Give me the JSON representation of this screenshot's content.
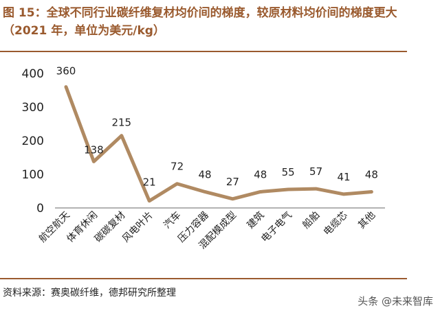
{
  "header": {
    "title": "图 15：全球不同行业碳纤维复材均价间的梯度，较原材料均价间的梯度更大（2021 年，单位为美元/kg）"
  },
  "footer": {
    "source": "资料来源：赛奥碳纤维，德邦研究所整理",
    "watermark": "头条 @未来智库"
  },
  "colors": {
    "accent": "#9a5a2e",
    "line": "#b08a62"
  },
  "chart_data": {
    "type": "line",
    "categories": [
      "航空航天",
      "体育休闲",
      "碳碳复材",
      "风电叶片",
      "汽车",
      "压力容器",
      "混配模成型",
      "建筑",
      "电子电气",
      "船舶",
      "电缆芯",
      "其他"
    ],
    "values": [
      360,
      138,
      215,
      21,
      72,
      48,
      27,
      48,
      55,
      57,
      41,
      48
    ],
    "data_labels": [
      "360",
      "138",
      "215",
      "21",
      "72",
      "48",
      "27",
      "48",
      "55",
      "57",
      "41",
      "48"
    ],
    "yticks": [
      "0",
      "100",
      "200",
      "300",
      "400"
    ],
    "ylim": [
      0,
      400
    ],
    "grid": false,
    "legend": false
  }
}
